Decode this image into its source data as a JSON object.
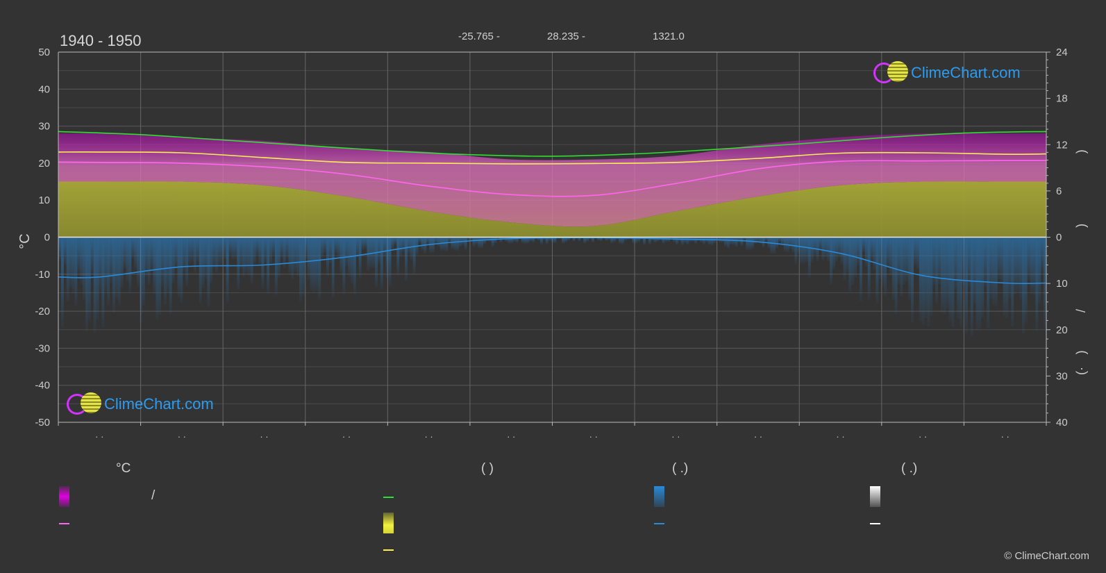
{
  "header": {
    "title": "1940 - 1950",
    "latitude": "-25.765 -",
    "longitude": "28.235 -",
    "elevation": "1321.0"
  },
  "logo": {
    "text": "ClimeChart.com"
  },
  "copyright": "© ClimeChart.com",
  "legend": {
    "col_temperature_head": "°C",
    "col_daylight_head": "(          )",
    "col_rain_head": "(   .)",
    "col_snow_head": "(   .)",
    "slash_label": "/"
  },
  "colors": {
    "background": "#333333",
    "min_max_band": "#d000d0",
    "temp_avg": "#ff66ee",
    "daylight": "#33dd33",
    "sunshine_band": "#d4d43a",
    "sunshine_avg": "#ffee55",
    "rain": "#2a8ad8",
    "snow": "#ffffff"
  },
  "chart_data": {
    "type": "line",
    "title": "1940 - 1950",
    "ylabel_left": "°C",
    "ylim_left": [
      -50,
      50
    ],
    "y_ticks_left": [
      50,
      40,
      30,
      20,
      10,
      0,
      -10,
      -20,
      -30,
      -40,
      -50
    ],
    "ylim_right_top": [
      0,
      24
    ],
    "y_ticks_right_top": [
      24,
      18,
      12,
      6,
      0
    ],
    "ylim_right_bottom": [
      0,
      40
    ],
    "y_ticks_right_bottom": [
      10,
      20,
      30,
      40
    ],
    "x_month_labels": [
      "· ·",
      "· ·",
      "· ·",
      "· ·",
      "· ·",
      "· ·",
      "· ·",
      "· ·",
      "· ·",
      "· ·",
      "· ·",
      "· ·"
    ],
    "grid": true,
    "month_positions": [
      0.5,
      1.5,
      2.5,
      3.5,
      4.5,
      5.5,
      6.5,
      7.5,
      8.5,
      9.5,
      10.5,
      11.5
    ],
    "series": [
      {
        "key": "daylight",
        "axis": "right_top",
        "unit": "hours",
        "x": [
          0,
          1,
          2,
          3,
          4,
          5,
          6,
          7,
          8,
          9,
          10,
          11,
          12
        ],
        "values": [
          13.7,
          13.3,
          12.6,
          11.9,
          11.2,
          10.7,
          10.5,
          10.8,
          11.4,
          12.1,
          12.9,
          13.5,
          13.7
        ]
      },
      {
        "key": "sunshine_avg",
        "axis": "left",
        "unit": "°C",
        "x": [
          0,
          0.5,
          1.5,
          2.5,
          3.5,
          4.5,
          5.5,
          6.5,
          7.5,
          8.5,
          9.5,
          10.5,
          11.5,
          12
        ],
        "values": [
          23.0,
          23.0,
          22.8,
          21.5,
          20.2,
          20.0,
          19.8,
          19.9,
          20.2,
          21.3,
          22.7,
          22.8,
          22.4,
          22.5
        ]
      },
      {
        "key": "temp_avg",
        "axis": "left",
        "unit": "°C",
        "x": [
          0,
          0.5,
          1.5,
          2.5,
          3.5,
          4.5,
          5.5,
          6.5,
          7.5,
          8.5,
          9.5,
          10.5,
          11.5,
          12
        ],
        "values": [
          20.3,
          20.2,
          20.0,
          19.0,
          17.0,
          13.8,
          11.5,
          11.3,
          14.5,
          18.5,
          20.5,
          20.6,
          20.7,
          20.7
        ]
      },
      {
        "key": "rain",
        "axis": "right_bottom",
        "unit": "mm",
        "x": [
          0,
          0.5,
          1.5,
          2.5,
          3.5,
          4.5,
          5.5,
          6.5,
          7.5,
          8.5,
          9.5,
          10.5,
          11.5,
          12
        ],
        "values": [
          8.6,
          8.6,
          6.4,
          6.0,
          4.3,
          1.6,
          0.3,
          0.1,
          0.4,
          1.0,
          3.5,
          8.3,
          9.9,
          9.9
        ]
      }
    ],
    "bands": [
      {
        "key": "min_max_band",
        "axis": "left",
        "x": [
          0,
          0.5,
          1.5,
          2.5,
          3.5,
          4.5,
          5.5,
          6.5,
          7.5,
          8.5,
          9.5,
          10.5,
          11.5,
          12
        ],
        "upper": [
          28,
          28,
          27,
          26,
          24,
          23,
          21,
          21,
          22,
          25,
          27,
          28,
          28,
          28
        ],
        "lower": [
          15,
          15,
          15,
          14,
          11,
          7,
          4,
          3,
          7,
          11,
          14,
          15,
          15,
          15
        ]
      },
      {
        "key": "sunshine_band",
        "axis": "left",
        "x": [
          0,
          0.5,
          1.5,
          2.5,
          3.5,
          4.5,
          5.5,
          6.5,
          7.5,
          8.5,
          9.5,
          10.5,
          11.5,
          12
        ],
        "upper": [
          15,
          15,
          15,
          14,
          11,
          7,
          4,
          3,
          7,
          11,
          14,
          15,
          15,
          15
        ],
        "lower": [
          0,
          0,
          0,
          0,
          0,
          0,
          0,
          0,
          0,
          0,
          0,
          0,
          0,
          0
        ]
      }
    ]
  }
}
